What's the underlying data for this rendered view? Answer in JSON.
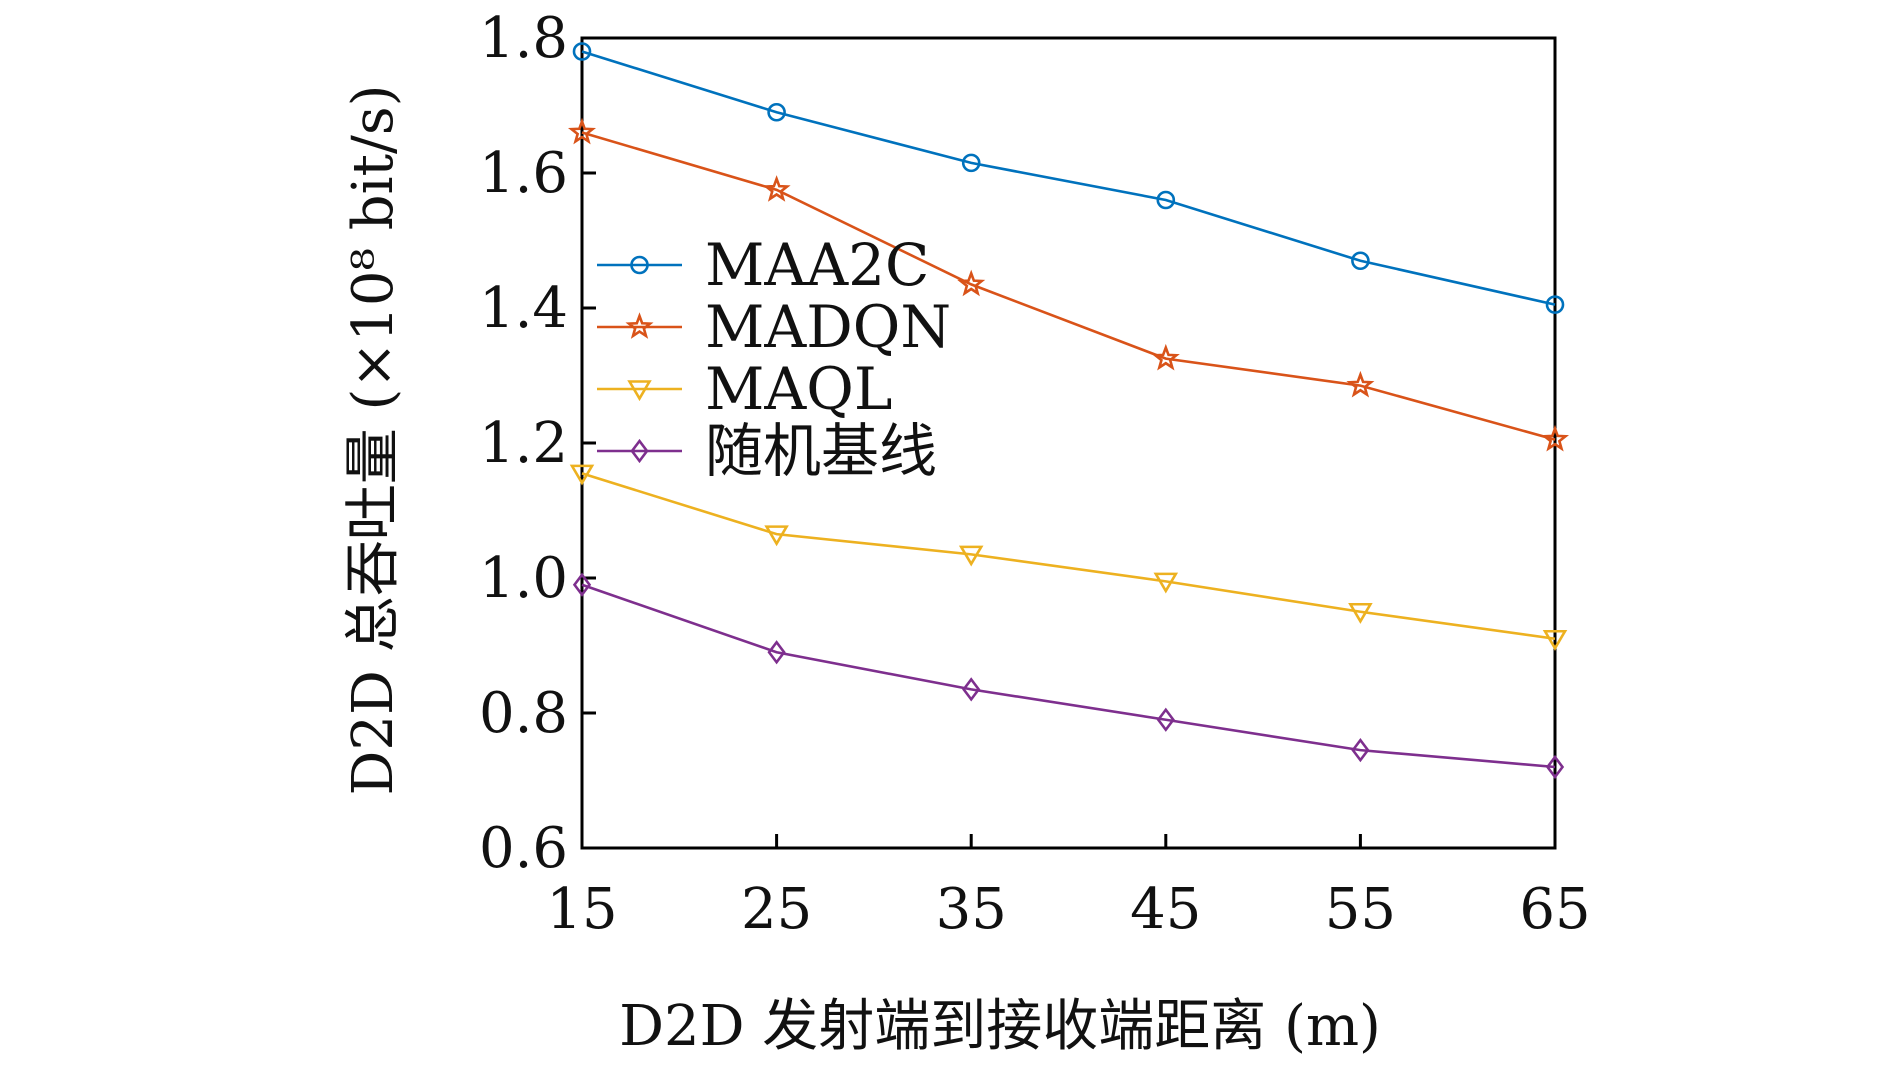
{
  "chart_data": {
    "type": "line",
    "xlabel": "D2D 发射端到接收端距离 (m)",
    "ylabel": "D2D 总吞吐量 (×10⁸ bit/s)",
    "x": [
      15,
      25,
      35,
      45,
      55,
      65
    ],
    "xlim": [
      15,
      65
    ],
    "ylim": [
      0.6,
      1.8
    ],
    "x_ticks": [
      "15",
      "25",
      "35",
      "45",
      "55",
      "65"
    ],
    "y_ticks": [
      "0.6",
      "0.8",
      "1.0",
      "1.2",
      "1.4",
      "1.6",
      "1.8"
    ],
    "grid": false,
    "legend_position": "upper-left",
    "series": [
      {
        "name": "MAA2C",
        "color": "#0072BD",
        "marker": "circle",
        "values": [
          1.78,
          1.69,
          1.615,
          1.56,
          1.47,
          1.405
        ]
      },
      {
        "name": "MADQN",
        "color": "#D95319",
        "marker": "star",
        "values": [
          1.66,
          1.575,
          1.435,
          1.325,
          1.285,
          1.205
        ]
      },
      {
        "name": "MAQL",
        "color": "#EDB120",
        "marker": "triangle-down",
        "values": [
          1.155,
          1.065,
          1.035,
          0.995,
          0.95,
          0.91
        ]
      },
      {
        "name": "随机基线",
        "color": "#7E2F8E",
        "marker": "diamond",
        "values": [
          0.99,
          0.89,
          0.835,
          0.79,
          0.745,
          0.72
        ]
      }
    ]
  }
}
